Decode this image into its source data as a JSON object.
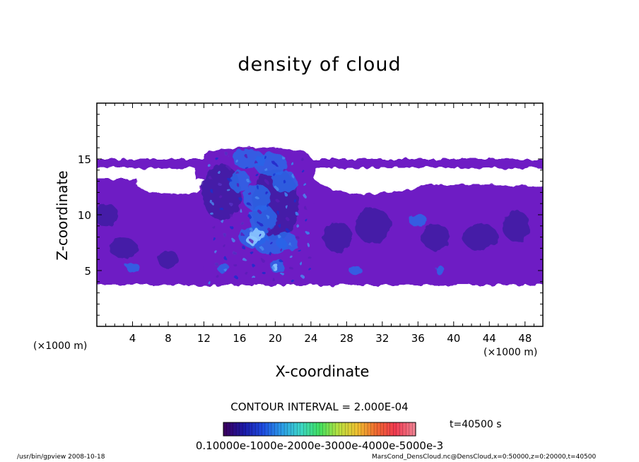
{
  "chart_data": {
    "type": "heatmap",
    "title": "density of cloud",
    "xlabel": "X-coordinate",
    "ylabel": "Z-coordinate",
    "x_unit": "(×1000 m)",
    "z_unit": "(×1000 m)",
    "xlim": [
      0,
      50
    ],
    "ylim": [
      0,
      20
    ],
    "x_ticks": [
      "4",
      "8",
      "12",
      "16",
      "20",
      "24",
      "28",
      "32",
      "36",
      "40",
      "44",
      "48"
    ],
    "y_ticks": [
      "5",
      "10",
      "15"
    ],
    "contour_interval_text": "CONTOUR INTERVAL = 2.000E-04",
    "time_text": "t=40500 s",
    "colorbar_labels": "0.10000e-1000e-2000e-3000e-4000e-5000e-3",
    "colorbar_range": [
      0.0001,
      0.0005
    ],
    "colorbar_colors": [
      "#3a0060",
      "#1c1aa6",
      "#1e4be0",
      "#2a9be8",
      "#3cd6c8",
      "#40e060",
      "#b8e040",
      "#f0c030",
      "#f06a30",
      "#f03a50",
      "#f08090"
    ],
    "cloud_region": {
      "z_bottom": 3.7,
      "z_top_layer": 15.0,
      "core_x_range": [
        12,
        24
      ],
      "core_z_top": 16.0
    },
    "field_colors": {
      "background": "#6e1ec4",
      "low": "#3a1aa0",
      "high": "#2a66e8",
      "peak": "#8cc8ff"
    }
  },
  "footer": {
    "left": "/usr/bin/gpview  2008-10-18",
    "right": "MarsCond_DensCloud.nc@DensCloud,x=0:50000,z=0:20000,t=40500"
  }
}
